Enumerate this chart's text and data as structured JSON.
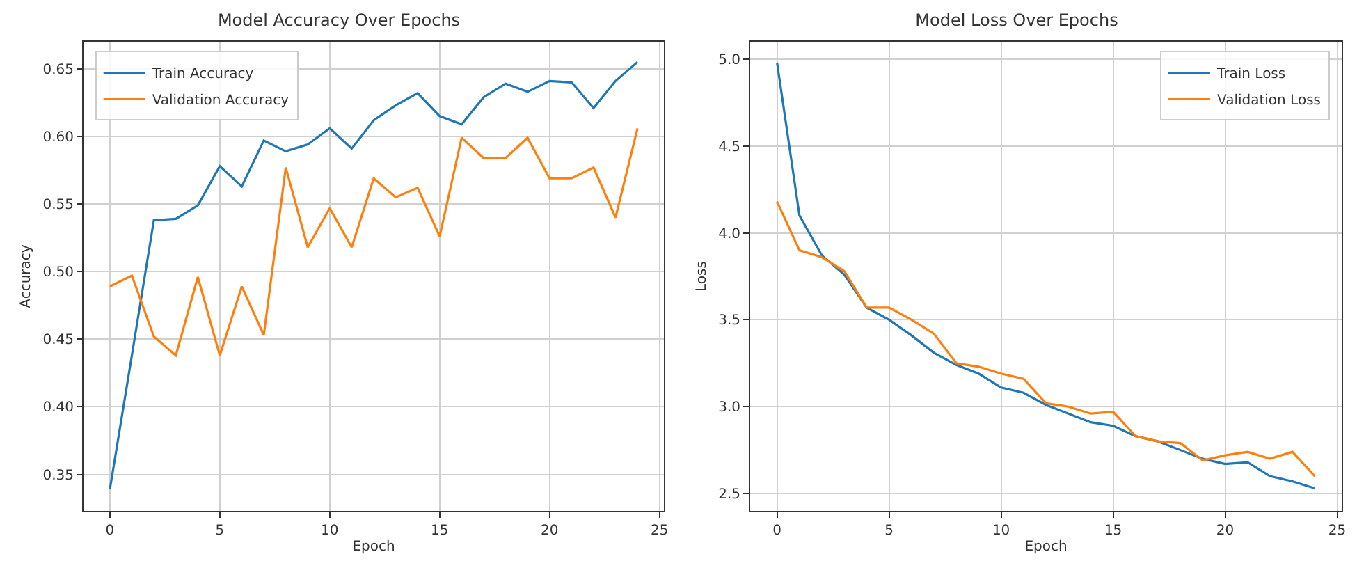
{
  "chart_data": [
    {
      "type": "line",
      "title": "Model Accuracy Over Epochs",
      "xlabel": "Epoch",
      "ylabel": "Accuracy",
      "x": [
        0,
        1,
        2,
        3,
        4,
        5,
        6,
        7,
        8,
        9,
        10,
        11,
        12,
        13,
        14,
        15,
        16,
        17,
        18,
        19,
        20,
        21,
        22,
        23,
        24
      ],
      "series": [
        {
          "name": "Train Accuracy",
          "color": "#1f77b4",
          "values": [
            0.339,
            0.438,
            0.538,
            0.539,
            0.549,
            0.578,
            0.563,
            0.597,
            0.589,
            0.594,
            0.606,
            0.591,
            0.612,
            0.623,
            0.632,
            0.615,
            0.609,
            0.629,
            0.639,
            0.633,
            0.641,
            0.64,
            0.621,
            0.641,
            0.655
          ]
        },
        {
          "name": "Validation Accuracy",
          "color": "#ff7f0e",
          "values": [
            0.489,
            0.497,
            0.452,
            0.438,
            0.496,
            0.438,
            0.489,
            0.453,
            0.577,
            0.518,
            0.547,
            0.518,
            0.569,
            0.555,
            0.562,
            0.526,
            0.599,
            0.584,
            0.584,
            0.599,
            0.569,
            0.569,
            0.577,
            0.54,
            0.606
          ]
        }
      ],
      "xlim": [
        -1.2,
        25.2
      ],
      "xticks": [
        0,
        5,
        10,
        15,
        20,
        25
      ],
      "ylim": [
        0.323,
        0.67
      ],
      "yticks": [
        {
          "value": 0.35,
          "label": "0.35"
        },
        {
          "value": 0.4,
          "label": "0.40"
        },
        {
          "value": 0.45,
          "label": "0.45"
        },
        {
          "value": 0.5,
          "label": "0.50"
        },
        {
          "value": 0.55,
          "label": "0.55"
        },
        {
          "value": 0.6,
          "label": "0.60"
        },
        {
          "value": 0.65,
          "label": "0.65"
        }
      ],
      "grid": true,
      "legend": "top left",
      "marker": "none",
      "line_style": "solid"
    },
    {
      "type": "line",
      "title": "Model Loss Over Epochs",
      "xlabel": "Epoch",
      "ylabel": "Loss",
      "x": [
        0,
        1,
        2,
        3,
        4,
        5,
        6,
        7,
        8,
        9,
        10,
        11,
        12,
        13,
        14,
        15,
        16,
        17,
        18,
        19,
        20,
        21,
        22,
        23,
        24
      ],
      "series": [
        {
          "name": "Train Loss",
          "color": "#1f77b4",
          "values": [
            4.98,
            4.1,
            3.87,
            3.76,
            3.57,
            3.5,
            3.41,
            3.31,
            3.24,
            3.19,
            3.11,
            3.08,
            3.01,
            2.96,
            2.91,
            2.89,
            2.83,
            2.8,
            2.75,
            2.7,
            2.67,
            2.68,
            2.6,
            2.57,
            2.53
          ]
        },
        {
          "name": "Validation Loss",
          "color": "#ff7f0e",
          "values": [
            4.18,
            3.9,
            3.86,
            3.78,
            3.57,
            3.57,
            3.5,
            3.42,
            3.25,
            3.23,
            3.19,
            3.16,
            3.02,
            3.0,
            2.96,
            2.97,
            2.83,
            2.8,
            2.79,
            2.69,
            2.72,
            2.74,
            2.7,
            2.74,
            2.6
          ]
        }
      ],
      "xlim": [
        -1.2,
        25.2
      ],
      "xticks": [
        0,
        5,
        10,
        15,
        20,
        25
      ],
      "ylim": [
        2.4,
        5.1
      ],
      "yticks": [
        {
          "value": 2.5,
          "label": "2.5"
        },
        {
          "value": 3,
          "label": "3.0"
        },
        {
          "value": 3.5,
          "label": "3.5"
        },
        {
          "value": 4,
          "label": "4.0"
        },
        {
          "value": 4.5,
          "label": "4.5"
        },
        {
          "value": 5,
          "label": "5.0"
        }
      ],
      "grid": true,
      "legend": "top right",
      "marker": "none",
      "line_style": "solid"
    }
  ]
}
